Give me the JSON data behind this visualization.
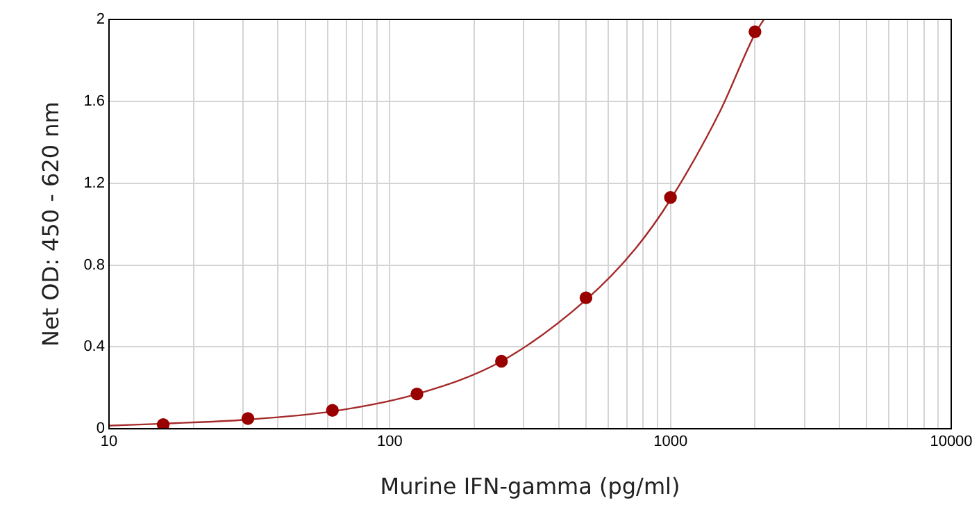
{
  "chart_data": {
    "type": "scatter",
    "xlabel": "Murine IFN-gamma (pg/ml)",
    "ylabel": "Net OD: 450 - 620 nm",
    "series": [
      {
        "color": "#990000",
        "x": [
          15.6,
          31.25,
          62.5,
          125,
          250,
          500,
          1000,
          2000
        ],
        "values": [
          0.02,
          0.05,
          0.09,
          0.17,
          0.33,
          0.64,
          1.13,
          1.94
        ],
        "marker": "circle"
      },
      {
        "type": "line",
        "color": "#a52a2a",
        "x": [
          10,
          15.6,
          31.25,
          62.5,
          125,
          250,
          500,
          750,
          1000,
          1500,
          2000,
          2150
        ],
        "values": [
          0.015,
          0.025,
          0.045,
          0.085,
          0.17,
          0.33,
          0.63,
          0.88,
          1.12,
          1.55,
          1.93,
          2.0
        ],
        "marker": "none",
        "line_style": "solid"
      }
    ],
    "log": "x",
    "xlim": [
      10,
      10000
    ],
    "ylim": [
      0,
      2
    ],
    "xticks": [
      10,
      {
        "value": 20,
        "label": null
      },
      {
        "value": 30,
        "label": null
      },
      {
        "value": 40,
        "label": null
      },
      {
        "value": 50,
        "label": null
      },
      {
        "value": 60,
        "label": null
      },
      {
        "value": 70,
        "label": null
      },
      {
        "value": 80,
        "label": null
      },
      {
        "value": 90,
        "label": null
      },
      100,
      {
        "value": 200,
        "label": null
      },
      {
        "value": 300,
        "label": null
      },
      {
        "value": 400,
        "label": null
      },
      {
        "value": 500,
        "label": null
      },
      {
        "value": 600,
        "label": null
      },
      {
        "value": 700,
        "label": null
      },
      {
        "value": 800,
        "label": null
      },
      {
        "value": 900,
        "label": null
      },
      1000,
      {
        "value": 2000,
        "label": null
      },
      {
        "value": 3000,
        "label": null
      },
      {
        "value": 4000,
        "label": null
      },
      {
        "value": 5000,
        "label": null
      },
      {
        "value": 6000,
        "label": null
      },
      {
        "value": 7000,
        "label": null
      },
      {
        "value": 8000,
        "label": null
      },
      {
        "value": 9000,
        "label": null
      },
      10000
    ],
    "yticks": [
      0,
      0.4,
      0.8,
      1.2,
      1.6,
      2
    ],
    "grid": true,
    "legend": false
  }
}
